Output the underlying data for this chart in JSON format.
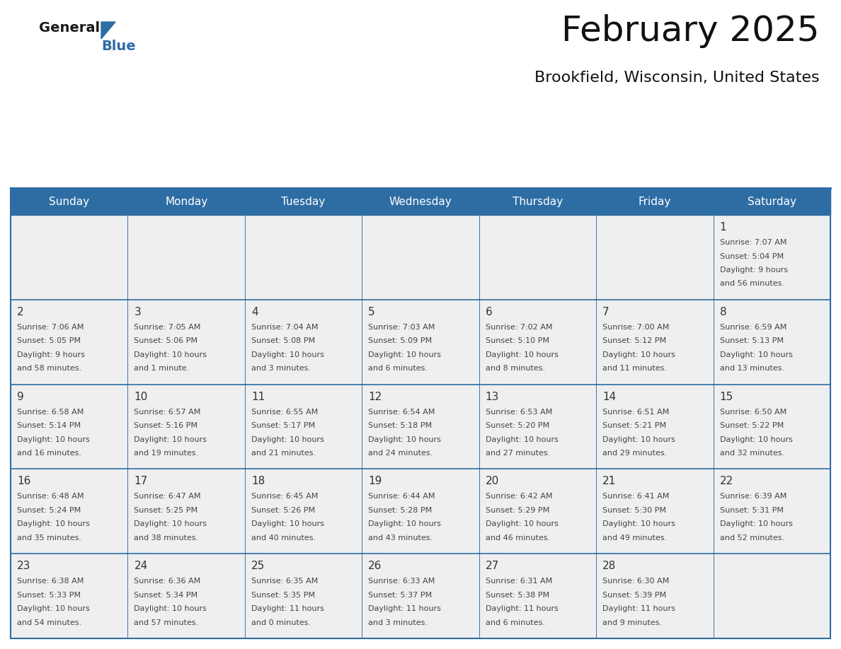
{
  "title": "February 2025",
  "subtitle": "Brookfield, Wisconsin, United States",
  "header_color": "#2E6DA4",
  "header_text_color": "#FFFFFF",
  "day_names": [
    "Sunday",
    "Monday",
    "Tuesday",
    "Wednesday",
    "Thursday",
    "Friday",
    "Saturday"
  ],
  "background_color": "#FFFFFF",
  "cell_bg_color": "#EFEFEF",
  "border_color": "#2E6DA4",
  "day_num_color": "#333333",
  "text_color": "#444444",
  "logo_color_general": "#1a1a1a",
  "logo_color_blue": "#2E6DA4",
  "weeks": [
    [
      {
        "day": null,
        "sunrise": null,
        "sunset": null,
        "daylight": null
      },
      {
        "day": null,
        "sunrise": null,
        "sunset": null,
        "daylight": null
      },
      {
        "day": null,
        "sunrise": null,
        "sunset": null,
        "daylight": null
      },
      {
        "day": null,
        "sunrise": null,
        "sunset": null,
        "daylight": null
      },
      {
        "day": null,
        "sunrise": null,
        "sunset": null,
        "daylight": null
      },
      {
        "day": null,
        "sunrise": null,
        "sunset": null,
        "daylight": null
      },
      {
        "day": 1,
        "sunrise": "7:07 AM",
        "sunset": "5:04 PM",
        "daylight": "9 hours\nand 56 minutes."
      }
    ],
    [
      {
        "day": 2,
        "sunrise": "7:06 AM",
        "sunset": "5:05 PM",
        "daylight": "9 hours\nand 58 minutes."
      },
      {
        "day": 3,
        "sunrise": "7:05 AM",
        "sunset": "5:06 PM",
        "daylight": "10 hours\nand 1 minute."
      },
      {
        "day": 4,
        "sunrise": "7:04 AM",
        "sunset": "5:08 PM",
        "daylight": "10 hours\nand 3 minutes."
      },
      {
        "day": 5,
        "sunrise": "7:03 AM",
        "sunset": "5:09 PM",
        "daylight": "10 hours\nand 6 minutes."
      },
      {
        "day": 6,
        "sunrise": "7:02 AM",
        "sunset": "5:10 PM",
        "daylight": "10 hours\nand 8 minutes."
      },
      {
        "day": 7,
        "sunrise": "7:00 AM",
        "sunset": "5:12 PM",
        "daylight": "10 hours\nand 11 minutes."
      },
      {
        "day": 8,
        "sunrise": "6:59 AM",
        "sunset": "5:13 PM",
        "daylight": "10 hours\nand 13 minutes."
      }
    ],
    [
      {
        "day": 9,
        "sunrise": "6:58 AM",
        "sunset": "5:14 PM",
        "daylight": "10 hours\nand 16 minutes."
      },
      {
        "day": 10,
        "sunrise": "6:57 AM",
        "sunset": "5:16 PM",
        "daylight": "10 hours\nand 19 minutes."
      },
      {
        "day": 11,
        "sunrise": "6:55 AM",
        "sunset": "5:17 PM",
        "daylight": "10 hours\nand 21 minutes."
      },
      {
        "day": 12,
        "sunrise": "6:54 AM",
        "sunset": "5:18 PM",
        "daylight": "10 hours\nand 24 minutes."
      },
      {
        "day": 13,
        "sunrise": "6:53 AM",
        "sunset": "5:20 PM",
        "daylight": "10 hours\nand 27 minutes."
      },
      {
        "day": 14,
        "sunrise": "6:51 AM",
        "sunset": "5:21 PM",
        "daylight": "10 hours\nand 29 minutes."
      },
      {
        "day": 15,
        "sunrise": "6:50 AM",
        "sunset": "5:22 PM",
        "daylight": "10 hours\nand 32 minutes."
      }
    ],
    [
      {
        "day": 16,
        "sunrise": "6:48 AM",
        "sunset": "5:24 PM",
        "daylight": "10 hours\nand 35 minutes."
      },
      {
        "day": 17,
        "sunrise": "6:47 AM",
        "sunset": "5:25 PM",
        "daylight": "10 hours\nand 38 minutes."
      },
      {
        "day": 18,
        "sunrise": "6:45 AM",
        "sunset": "5:26 PM",
        "daylight": "10 hours\nand 40 minutes."
      },
      {
        "day": 19,
        "sunrise": "6:44 AM",
        "sunset": "5:28 PM",
        "daylight": "10 hours\nand 43 minutes."
      },
      {
        "day": 20,
        "sunrise": "6:42 AM",
        "sunset": "5:29 PM",
        "daylight": "10 hours\nand 46 minutes."
      },
      {
        "day": 21,
        "sunrise": "6:41 AM",
        "sunset": "5:30 PM",
        "daylight": "10 hours\nand 49 minutes."
      },
      {
        "day": 22,
        "sunrise": "6:39 AM",
        "sunset": "5:31 PM",
        "daylight": "10 hours\nand 52 minutes."
      }
    ],
    [
      {
        "day": 23,
        "sunrise": "6:38 AM",
        "sunset": "5:33 PM",
        "daylight": "10 hours\nand 54 minutes."
      },
      {
        "day": 24,
        "sunrise": "6:36 AM",
        "sunset": "5:34 PM",
        "daylight": "10 hours\nand 57 minutes."
      },
      {
        "day": 25,
        "sunrise": "6:35 AM",
        "sunset": "5:35 PM",
        "daylight": "11 hours\nand 0 minutes."
      },
      {
        "day": 26,
        "sunrise": "6:33 AM",
        "sunset": "5:37 PM",
        "daylight": "11 hours\nand 3 minutes."
      },
      {
        "day": 27,
        "sunrise": "6:31 AM",
        "sunset": "5:38 PM",
        "daylight": "11 hours\nand 6 minutes."
      },
      {
        "day": 28,
        "sunrise": "6:30 AM",
        "sunset": "5:39 PM",
        "daylight": "11 hours\nand 9 minutes."
      },
      {
        "day": null,
        "sunrise": null,
        "sunset": null,
        "daylight": null
      }
    ]
  ]
}
